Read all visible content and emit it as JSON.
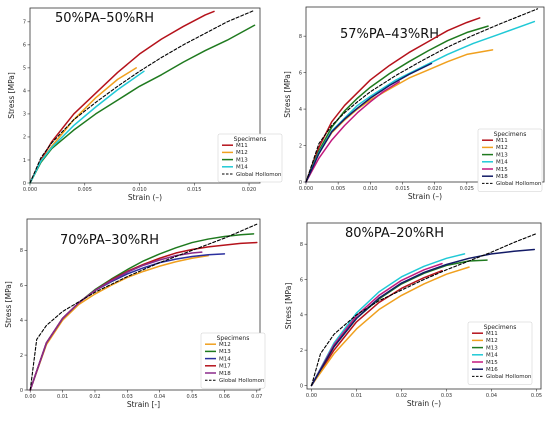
{
  "chart_data": [
    {
      "type": "line",
      "title": "50%PA–50%RH",
      "xlabel": "Strain (–)",
      "ylabel": "Stress [MPa]",
      "xlim": [
        0,
        0.021
      ],
      "ylim": [
        0,
        7.6
      ],
      "xticks": [
        0,
        0.005,
        0.01,
        0.015,
        0.02
      ],
      "xtick_labels": [
        "0.000",
        "0.005",
        "0.010",
        "0.015",
        "0.020"
      ],
      "yticks": [
        0,
        1,
        2,
        3,
        4,
        5,
        6,
        7
      ],
      "ytick_labels": [
        "0",
        "1",
        "2",
        "3",
        "4",
        "5",
        "6",
        "7"
      ],
      "legend_title": "Specimens",
      "legend_position": "lower-right",
      "grid": false,
      "series": [
        {
          "name": "M11",
          "color": "#b5121b",
          "dashed": false,
          "x": [
            0,
            0.001,
            0.002,
            0.004,
            0.006,
            0.008,
            0.01,
            0.012,
            0.014,
            0.016,
            0.0168
          ],
          "y": [
            0,
            1.0,
            1.8,
            3.0,
            3.9,
            4.8,
            5.6,
            6.25,
            6.8,
            7.3,
            7.45
          ]
        },
        {
          "name": "M12",
          "color": "#f0a01e",
          "dashed": false,
          "x": [
            0,
            0.001,
            0.002,
            0.004,
            0.006,
            0.008,
            0.0097
          ],
          "y": [
            0,
            0.95,
            1.6,
            2.75,
            3.7,
            4.5,
            5.0
          ]
        },
        {
          "name": "M13",
          "color": "#1f7a1f",
          "dashed": false,
          "x": [
            0,
            0.001,
            0.002,
            0.004,
            0.006,
            0.008,
            0.01,
            0.012,
            0.014,
            0.016,
            0.018,
            0.0205
          ],
          "y": [
            0,
            0.9,
            1.5,
            2.3,
            3.0,
            3.6,
            4.2,
            4.7,
            5.25,
            5.75,
            6.2,
            6.85
          ]
        },
        {
          "name": "M14",
          "color": "#20c9d6",
          "dashed": false,
          "x": [
            0,
            0.001,
            0.002,
            0.004,
            0.006,
            0.008,
            0.0104
          ],
          "y": [
            0,
            0.95,
            1.55,
            2.5,
            3.3,
            4.05,
            4.85
          ]
        },
        {
          "name": "Global Hollomon",
          "color": "#000000",
          "dashed": true,
          "x": [
            0,
            0.001,
            0.002,
            0.004,
            0.006,
            0.008,
            0.01,
            0.012,
            0.014,
            0.016,
            0.018,
            0.0205
          ],
          "y": [
            0,
            1.1,
            1.75,
            2.75,
            3.5,
            4.2,
            4.85,
            5.45,
            6.0,
            6.5,
            7.0,
            7.5
          ]
        }
      ]
    },
    {
      "type": "line",
      "title": "57%PA–43%RH",
      "xlabel": "Strain (–)",
      "ylabel": "Stress [MPa]",
      "xlim": [
        0,
        0.037
      ],
      "ylim": [
        0,
        9.6
      ],
      "xticks": [
        0,
        0.005,
        0.01,
        0.015,
        0.02,
        0.025,
        0.03,
        0.035
      ],
      "xtick_labels": [
        "0.000",
        "0.005",
        "0.010",
        "0.015",
        "0.020",
        "0.025",
        "0.030",
        "0.035"
      ],
      "yticks": [
        0,
        2,
        4,
        6,
        8
      ],
      "ytick_labels": [
        "0",
        "2",
        "4",
        "6",
        "8"
      ],
      "legend_title": "Specimens",
      "legend_position": "lower-right",
      "grid": false,
      "series": [
        {
          "name": "M11",
          "color": "#b5121b",
          "dashed": false,
          "x": [
            0,
            0.002,
            0.004,
            0.006,
            0.008,
            0.01,
            0.013,
            0.016,
            0.019,
            0.022,
            0.025,
            0.027
          ],
          "y": [
            0,
            1.9,
            3.3,
            4.2,
            4.9,
            5.6,
            6.4,
            7.1,
            7.7,
            8.3,
            8.75,
            9.0
          ]
        },
        {
          "name": "M12",
          "color": "#f0a01e",
          "dashed": false,
          "x": [
            0,
            0.002,
            0.004,
            0.006,
            0.008,
            0.01,
            0.013,
            0.016,
            0.019,
            0.022,
            0.025,
            0.029
          ],
          "y": [
            0,
            1.6,
            2.7,
            3.4,
            4.0,
            4.5,
            5.1,
            5.7,
            6.15,
            6.6,
            7.0,
            7.25
          ]
        },
        {
          "name": "M13",
          "color": "#1f7a1f",
          "dashed": false,
          "x": [
            0,
            0.002,
            0.004,
            0.006,
            0.008,
            0.01,
            0.013,
            0.016,
            0.019,
            0.022,
            0.025,
            0.0283
          ],
          "y": [
            0,
            1.7,
            3.0,
            3.9,
            4.6,
            5.2,
            5.95,
            6.6,
            7.2,
            7.75,
            8.2,
            8.55
          ]
        },
        {
          "name": "M14",
          "color": "#20c9d6",
          "dashed": false,
          "x": [
            0,
            0.002,
            0.004,
            0.006,
            0.008,
            0.01,
            0.014,
            0.018,
            0.022,
            0.026,
            0.03,
            0.0355
          ],
          "y": [
            0,
            1.6,
            2.8,
            3.5,
            4.2,
            4.7,
            5.6,
            6.3,
            7.0,
            7.6,
            8.1,
            8.8
          ]
        },
        {
          "name": "M15",
          "color": "#c2197d",
          "dashed": false,
          "x": [
            0,
            0.002,
            0.004,
            0.006,
            0.008,
            0.01,
            0.012,
            0.0145
          ],
          "y": [
            0,
            1.3,
            2.3,
            3.1,
            3.8,
            4.4,
            4.95,
            5.5
          ]
        },
        {
          "name": "M18",
          "color": "#121a66",
          "dashed": false,
          "x": [
            0,
            0.002,
            0.004,
            0.006,
            0.008,
            0.01,
            0.013,
            0.016,
            0.0195
          ],
          "y": [
            0,
            1.55,
            2.75,
            3.45,
            4.05,
            4.6,
            5.3,
            5.9,
            6.5
          ]
        },
        {
          "name": "Global Hollomon",
          "color": "#000000",
          "dashed": true,
          "x": [
            0,
            0.002,
            0.004,
            0.006,
            0.008,
            0.01,
            0.014,
            0.018,
            0.022,
            0.026,
            0.03,
            0.036
          ],
          "y": [
            0,
            2.1,
            3.1,
            3.8,
            4.4,
            4.95,
            5.85,
            6.65,
            7.4,
            8.05,
            8.65,
            9.5
          ]
        }
      ]
    },
    {
      "type": "line",
      "title": "70%PA–30%RH",
      "xlabel": "Strain [-]",
      "ylabel": "Stress [MPa]",
      "xlim": [
        -0.001,
        0.071
      ],
      "ylim": [
        0,
        9.8
      ],
      "xticks": [
        0,
        0.01,
        0.02,
        0.03,
        0.04,
        0.05,
        0.06,
        0.07
      ],
      "xtick_labels": [
        "0.00",
        "0.01",
        "0.02",
        "0.03",
        "0.04",
        "0.05",
        "0.06",
        "0.07"
      ],
      "yticks": [
        0,
        2,
        4,
        6,
        8
      ],
      "ytick_labels": [
        "0",
        "2",
        "4",
        "6",
        "8"
      ],
      "legend_title": "Specimens",
      "legend_position": "lower-right",
      "grid": false,
      "series": [
        {
          "name": "M12",
          "color": "#f0a01e",
          "dashed": false,
          "x": [
            0,
            0.005,
            0.01,
            0.015,
            0.02,
            0.025,
            0.03,
            0.035,
            0.04,
            0.045,
            0.05,
            0.055
          ],
          "y": [
            0,
            2.6,
            4.0,
            4.9,
            5.5,
            6.0,
            6.45,
            6.8,
            7.1,
            7.35,
            7.55,
            7.7
          ]
        },
        {
          "name": "M13",
          "color": "#1f7a1f",
          "dashed": false,
          "x": [
            0,
            0.005,
            0.01,
            0.015,
            0.02,
            0.025,
            0.03,
            0.035,
            0.04,
            0.045,
            0.05,
            0.055,
            0.06,
            0.065,
            0.069
          ],
          "y": [
            0,
            2.7,
            4.1,
            5.0,
            5.75,
            6.35,
            6.9,
            7.4,
            7.8,
            8.15,
            8.45,
            8.65,
            8.8,
            8.9,
            8.95
          ]
        },
        {
          "name": "M14",
          "color": "#2b2f9e",
          "dashed": false,
          "x": [
            0,
            0.005,
            0.01,
            0.015,
            0.02,
            0.025,
            0.03,
            0.035,
            0.04,
            0.045,
            0.05,
            0.055,
            0.06
          ],
          "y": [
            0,
            2.7,
            4.1,
            5.0,
            5.7,
            6.2,
            6.65,
            7.0,
            7.3,
            7.5,
            7.65,
            7.75,
            7.8
          ]
        },
        {
          "name": "M17",
          "color": "#b5121b",
          "dashed": false,
          "x": [
            0,
            0.005,
            0.01,
            0.015,
            0.02,
            0.025,
            0.03,
            0.035,
            0.04,
            0.045,
            0.05,
            0.055,
            0.06,
            0.065,
            0.07
          ],
          "y": [
            0,
            2.7,
            4.1,
            5.0,
            5.7,
            6.3,
            6.8,
            7.2,
            7.55,
            7.85,
            8.05,
            8.2,
            8.3,
            8.4,
            8.45
          ]
        },
        {
          "name": "M18",
          "color": "#8a2b8a",
          "dashed": false,
          "x": [
            0,
            0.005,
            0.01,
            0.015,
            0.02,
            0.025,
            0.03,
            0.035,
            0.04,
            0.045,
            0.05,
            0.053
          ],
          "y": [
            0,
            2.7,
            4.1,
            5.0,
            5.7,
            6.25,
            6.75,
            7.15,
            7.45,
            7.7,
            7.85,
            7.9
          ]
        },
        {
          "name": "Global Hollomon",
          "color": "#000000",
          "dashed": true,
          "x": [
            0,
            0.002,
            0.005,
            0.01,
            0.02,
            0.03,
            0.04,
            0.05,
            0.06,
            0.07
          ],
          "y": [
            0,
            2.9,
            3.7,
            4.5,
            5.6,
            6.5,
            7.3,
            8.0,
            8.7,
            9.5
          ]
        }
      ]
    },
    {
      "type": "line",
      "title": "80%PA–20%RH",
      "xlabel": "Strain (–)",
      "ylabel": "Stress [MPa]",
      "xlim": [
        -0.001,
        0.051
      ],
      "ylim": [
        -0.2,
        9.2
      ],
      "xticks": [
        0,
        0.01,
        0.02,
        0.03,
        0.04,
        0.05
      ],
      "xtick_labels": [
        "0.00",
        "0.01",
        "0.02",
        "0.03",
        "0.04",
        "0.05"
      ],
      "yticks": [
        0,
        2,
        4,
        6,
        8
      ],
      "ytick_labels": [
        "0",
        "2",
        "4",
        "6",
        "8"
      ],
      "legend_title": "Specimens",
      "legend_position": "lower-right",
      "grid": false,
      "series": [
        {
          "name": "M11",
          "color": "#b5121b",
          "dashed": false,
          "x": [
            0,
            0.005,
            0.01,
            0.015,
            0.02,
            0.025,
            0.029
          ],
          "y": [
            0,
            2.0,
            3.6,
            4.7,
            5.5,
            6.1,
            6.5
          ]
        },
        {
          "name": "M12",
          "color": "#f0a01e",
          "dashed": false,
          "x": [
            0,
            0.005,
            0.01,
            0.015,
            0.02,
            0.025,
            0.03,
            0.035
          ],
          "y": [
            0,
            1.8,
            3.2,
            4.3,
            5.1,
            5.75,
            6.3,
            6.7
          ]
        },
        {
          "name": "M13",
          "color": "#1f7a1f",
          "dashed": false,
          "x": [
            0,
            0.005,
            0.01,
            0.015,
            0.02,
            0.025,
            0.03,
            0.035,
            0.039
          ],
          "y": [
            0,
            2.2,
            3.8,
            4.9,
            5.75,
            6.35,
            6.8,
            7.05,
            7.1
          ]
        },
        {
          "name": "M14",
          "color": "#20c9d6",
          "dashed": false,
          "x": [
            0,
            0.005,
            0.01,
            0.015,
            0.02,
            0.025,
            0.03,
            0.034
          ],
          "y": [
            0,
            2.4,
            4.1,
            5.3,
            6.15,
            6.75,
            7.2,
            7.45
          ]
        },
        {
          "name": "M15",
          "color": "#c2197d",
          "dashed": false,
          "x": [
            0,
            0.005,
            0.01,
            0.015,
            0.02,
            0.025,
            0.029
          ],
          "y": [
            0,
            2.3,
            3.95,
            5.1,
            5.95,
            6.55,
            6.9
          ]
        },
        {
          "name": "M16",
          "color": "#121a66",
          "dashed": false,
          "x": [
            0,
            0.005,
            0.01,
            0.015,
            0.02,
            0.025,
            0.03,
            0.035,
            0.04,
            0.045,
            0.0495
          ],
          "y": [
            0,
            2.2,
            3.8,
            4.95,
            5.8,
            6.4,
            6.85,
            7.2,
            7.45,
            7.6,
            7.7
          ]
        },
        {
          "name": "Global Hollomon",
          "color": "#000000",
          "dashed": true,
          "x": [
            0,
            0.002,
            0.005,
            0.01,
            0.015,
            0.02,
            0.025,
            0.03,
            0.035,
            0.04,
            0.045,
            0.05
          ],
          "y": [
            0,
            1.8,
            2.9,
            4.0,
            4.8,
            5.4,
            6.0,
            6.55,
            7.05,
            7.55,
            8.1,
            8.6
          ]
        }
      ]
    }
  ]
}
